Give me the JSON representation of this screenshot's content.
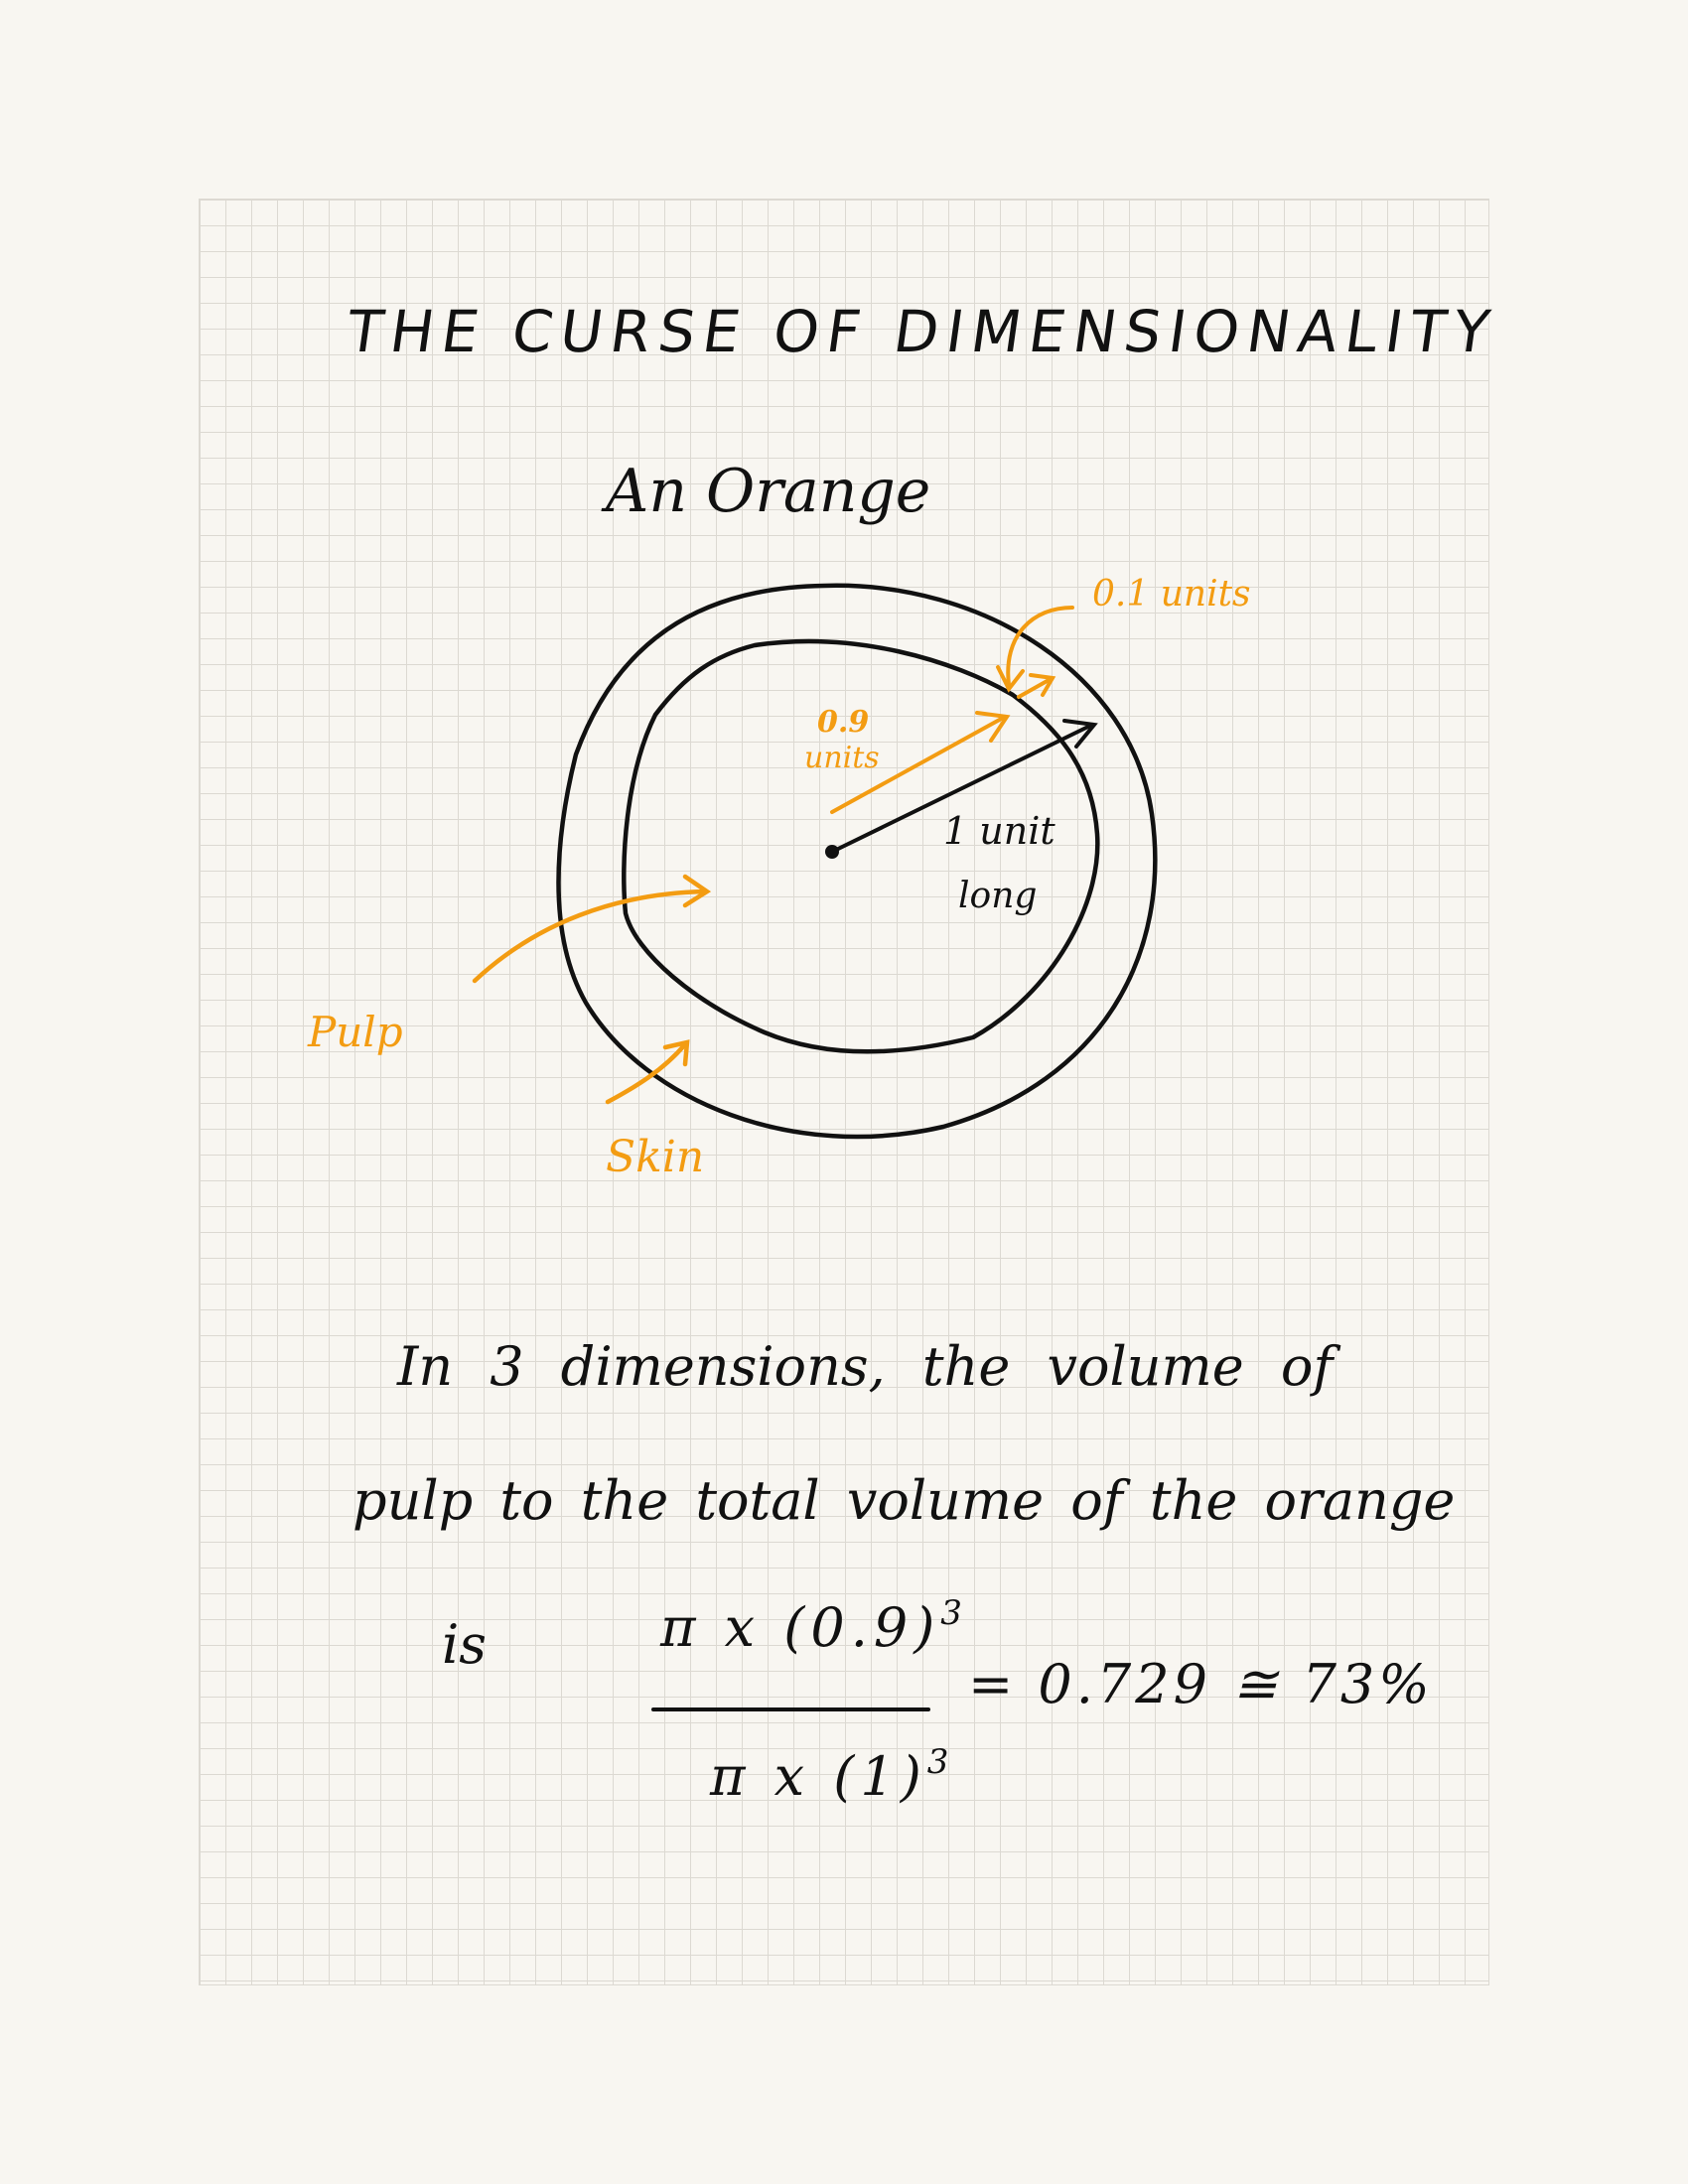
{
  "title": "THE CURSE OF DIMENSIONALITY",
  "subtitle": "An Orange",
  "diagram": {
    "skin_thickness_label": "0.1 units",
    "pulp_radius_label_line1": "0.9",
    "pulp_radius_label_line2": "units",
    "total_radius_label_line1": "1 unit",
    "total_radius_label_line2": "long",
    "pulp_label": "Pulp",
    "skin_label": "Skin"
  },
  "text": {
    "line1": "In 3 dimensions, the volume of",
    "line2": "pulp to the total volume of the orange",
    "line3_prefix": "is"
  },
  "formula": {
    "numerator": "π x (0.9)",
    "numerator_exp": "3",
    "denominator": "π x (1)",
    "denominator_exp": "3",
    "result": "= 0.729 ≅ 73%"
  },
  "colors": {
    "ink": "#111111",
    "accent": "#f39c12",
    "paper": "#f8f6f1",
    "grid": "#dcd9d2"
  }
}
